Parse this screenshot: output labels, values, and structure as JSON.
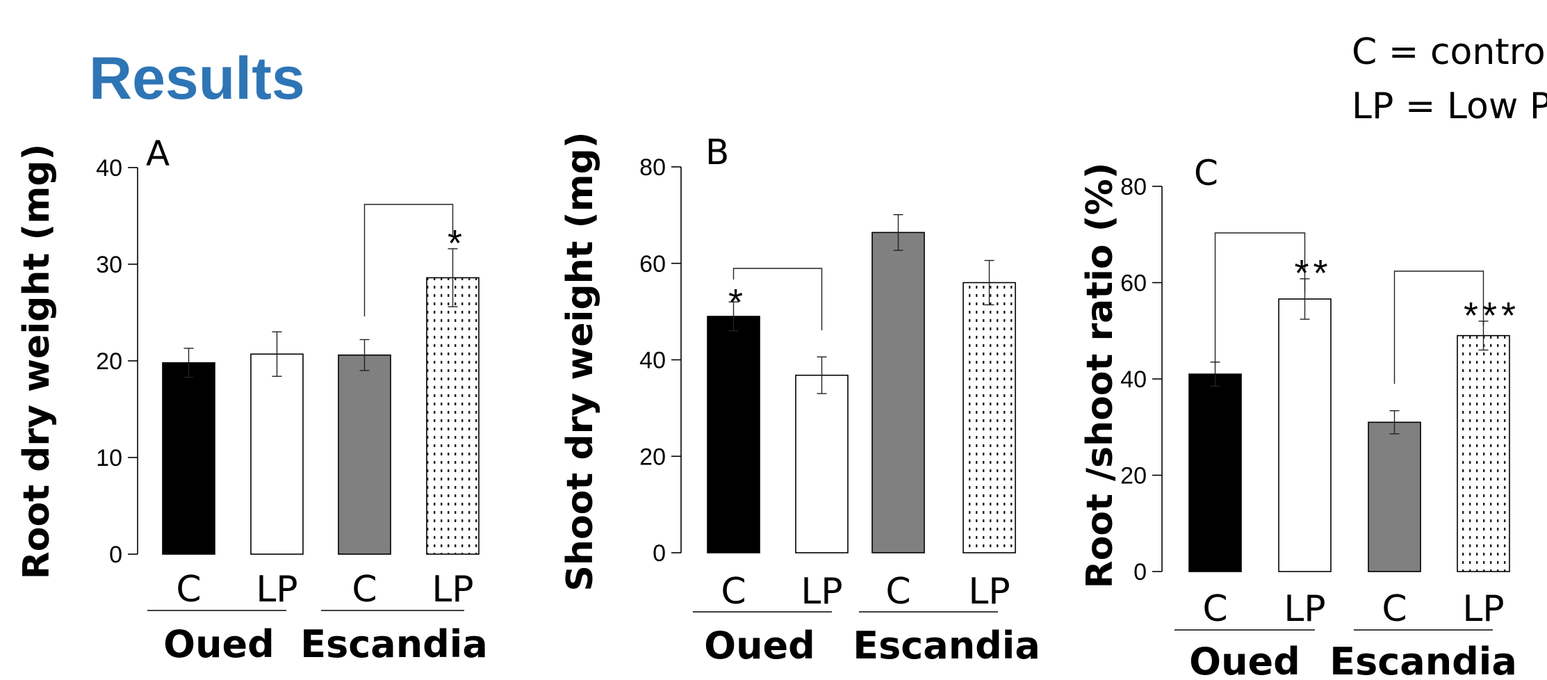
{
  "title": "Results",
  "legend": [
    "C = control",
    "LP = Low P"
  ],
  "colors": {
    "title": "#2e75b6",
    "control_oued": "#000000",
    "lp_oued": "#ffffff",
    "control_escandia": "#808080",
    "lp_escandia": "dotted"
  },
  "chart_data": [
    {
      "type": "bar",
      "panel_label": "A",
      "ylabel": "Root dry weight (mg)",
      "ylim": [
        0,
        40
      ],
      "yticks": [
        "0",
        "10",
        "20",
        "30",
        "40"
      ],
      "categories": [
        "C",
        "LP",
        "C",
        "LP"
      ],
      "groups": [
        "Oued",
        "Escandia"
      ],
      "values": [
        19.8,
        20.7,
        20.6,
        28.6
      ],
      "errors": [
        1.5,
        2.3,
        1.6,
        3.0
      ],
      "significance": [
        {
          "from": 2,
          "to": 3,
          "marker": "*"
        }
      ]
    },
    {
      "type": "bar",
      "panel_label": "B",
      "ylabel": "Shoot dry weight (mg)",
      "ylim": [
        0,
        80
      ],
      "yticks": [
        "0",
        "20",
        "40",
        "60",
        "80"
      ],
      "categories": [
        "C",
        "LP",
        "C",
        "LP"
      ],
      "groups": [
        "Oued",
        "Escandia"
      ],
      "values": [
        49.0,
        36.8,
        66.4,
        56.0
      ],
      "errors": [
        3.0,
        3.8,
        3.7,
        4.6
      ],
      "significance": [
        {
          "from": 0,
          "to": 1,
          "marker": "*"
        }
      ]
    },
    {
      "type": "bar",
      "panel_label": "C",
      "ylabel": "Root /shoot ratio (%)",
      "ylim": [
        0,
        80
      ],
      "yticks": [
        "0",
        "20",
        "40",
        "60",
        "80"
      ],
      "categories": [
        "C",
        "LP",
        "C",
        "LP"
      ],
      "groups": [
        "Oued",
        "Escandia"
      ],
      "values": [
        41.0,
        56.6,
        31.0,
        49.0
      ],
      "errors": [
        2.5,
        4.2,
        2.4,
        3.0
      ],
      "significance": [
        {
          "from": 0,
          "to": 1,
          "marker": "**"
        },
        {
          "from": 2,
          "to": 3,
          "marker": "***"
        }
      ]
    }
  ]
}
